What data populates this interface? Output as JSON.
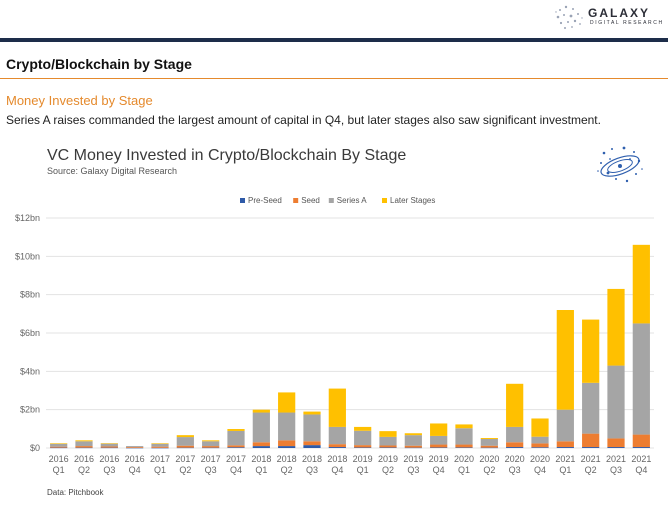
{
  "header": {
    "brand": "GALAXY",
    "brand_sub": "DIGITAL RESEARCH"
  },
  "section": {
    "title": "Crypto/Blockchain by Stage",
    "subtitle": "Money Invested by Stage",
    "description": "Series A raises commanded the largest amount of capital in Q4, but later stages also saw significant investment."
  },
  "chart_meta": {
    "title": "VC Money Invested in Crypto/Blockchain By Stage",
    "source": "Source: Galaxy Digital Research",
    "data_note": "Data: Pitchbook"
  },
  "colors": {
    "pre_seed": "#2e5aa8",
    "seed": "#ed7d31",
    "series_a": "#a5a5a5",
    "later": "#ffc000",
    "accent": "#e58a2d",
    "rule": "#1d2d4a"
  },
  "chart_data": {
    "type": "bar",
    "stacked": true,
    "title": "VC Money Invested in Crypto/Blockchain By Stage",
    "ylabel": "",
    "xlabel": "",
    "ylim": [
      0,
      12
    ],
    "y_ticks": [
      "$0",
      "$2bn",
      "$4bn",
      "$6bn",
      "$8bn",
      "$10bn",
      "$12bn"
    ],
    "grid": true,
    "legend_position": "top",
    "categories": [
      [
        "2016",
        "Q1"
      ],
      [
        "2016",
        "Q2"
      ],
      [
        "2016",
        "Q3"
      ],
      [
        "2016",
        "Q4"
      ],
      [
        "2017",
        "Q1"
      ],
      [
        "2017",
        "Q2"
      ],
      [
        "2017",
        "Q3"
      ],
      [
        "2017",
        "Q4"
      ],
      [
        "2018",
        "Q1"
      ],
      [
        "2018",
        "Q2"
      ],
      [
        "2018",
        "Q3"
      ],
      [
        "2018",
        "Q4"
      ],
      [
        "2019",
        "Q1"
      ],
      [
        "2019",
        "Q2"
      ],
      [
        "2019",
        "Q3"
      ],
      [
        "2019",
        "Q4"
      ],
      [
        "2020",
        "Q1"
      ],
      [
        "2020",
        "Q2"
      ],
      [
        "2020",
        "Q3"
      ],
      [
        "2020",
        "Q4"
      ],
      [
        "2021",
        "Q1"
      ],
      [
        "2021",
        "Q2"
      ],
      [
        "2021",
        "Q3"
      ],
      [
        "2021",
        "Q4"
      ]
    ],
    "series": [
      {
        "name": "Pre-Seed",
        "color": "#2e5aa8",
        "values": [
          0.02,
          0.02,
          0.02,
          0.01,
          0.01,
          0.02,
          0.02,
          0.04,
          0.1,
          0.1,
          0.15,
          0.05,
          0.03,
          0.03,
          0.02,
          0.03,
          0.03,
          0.02,
          0.05,
          0.04,
          0.05,
          0.05,
          0.05,
          0.05
        ]
      },
      {
        "name": "Seed",
        "color": "#ed7d31",
        "values": [
          0.05,
          0.08,
          0.06,
          0.04,
          0.06,
          0.1,
          0.08,
          0.1,
          0.2,
          0.3,
          0.2,
          0.15,
          0.12,
          0.1,
          0.1,
          0.15,
          0.15,
          0.1,
          0.25,
          0.2,
          0.3,
          0.7,
          0.45,
          0.65
        ]
      },
      {
        "name": "Series A",
        "color": "#a5a5a5",
        "values": [
          0.15,
          0.25,
          0.15,
          0.05,
          0.15,
          0.45,
          0.25,
          0.75,
          1.55,
          1.45,
          1.4,
          0.9,
          0.75,
          0.45,
          0.55,
          0.45,
          0.85,
          0.35,
          0.8,
          0.35,
          1.65,
          2.65,
          3.8,
          5.8
        ]
      },
      {
        "name": "Later Stages",
        "color": "#ffc000",
        "values": [
          0.03,
          0.05,
          0.02,
          0.0,
          0.03,
          0.1,
          0.05,
          0.1,
          0.15,
          1.05,
          0.15,
          2.0,
          0.2,
          0.3,
          0.1,
          0.65,
          0.2,
          0.05,
          2.25,
          0.95,
          5.2,
          3.3,
          4.0,
          4.1
        ]
      }
    ]
  }
}
